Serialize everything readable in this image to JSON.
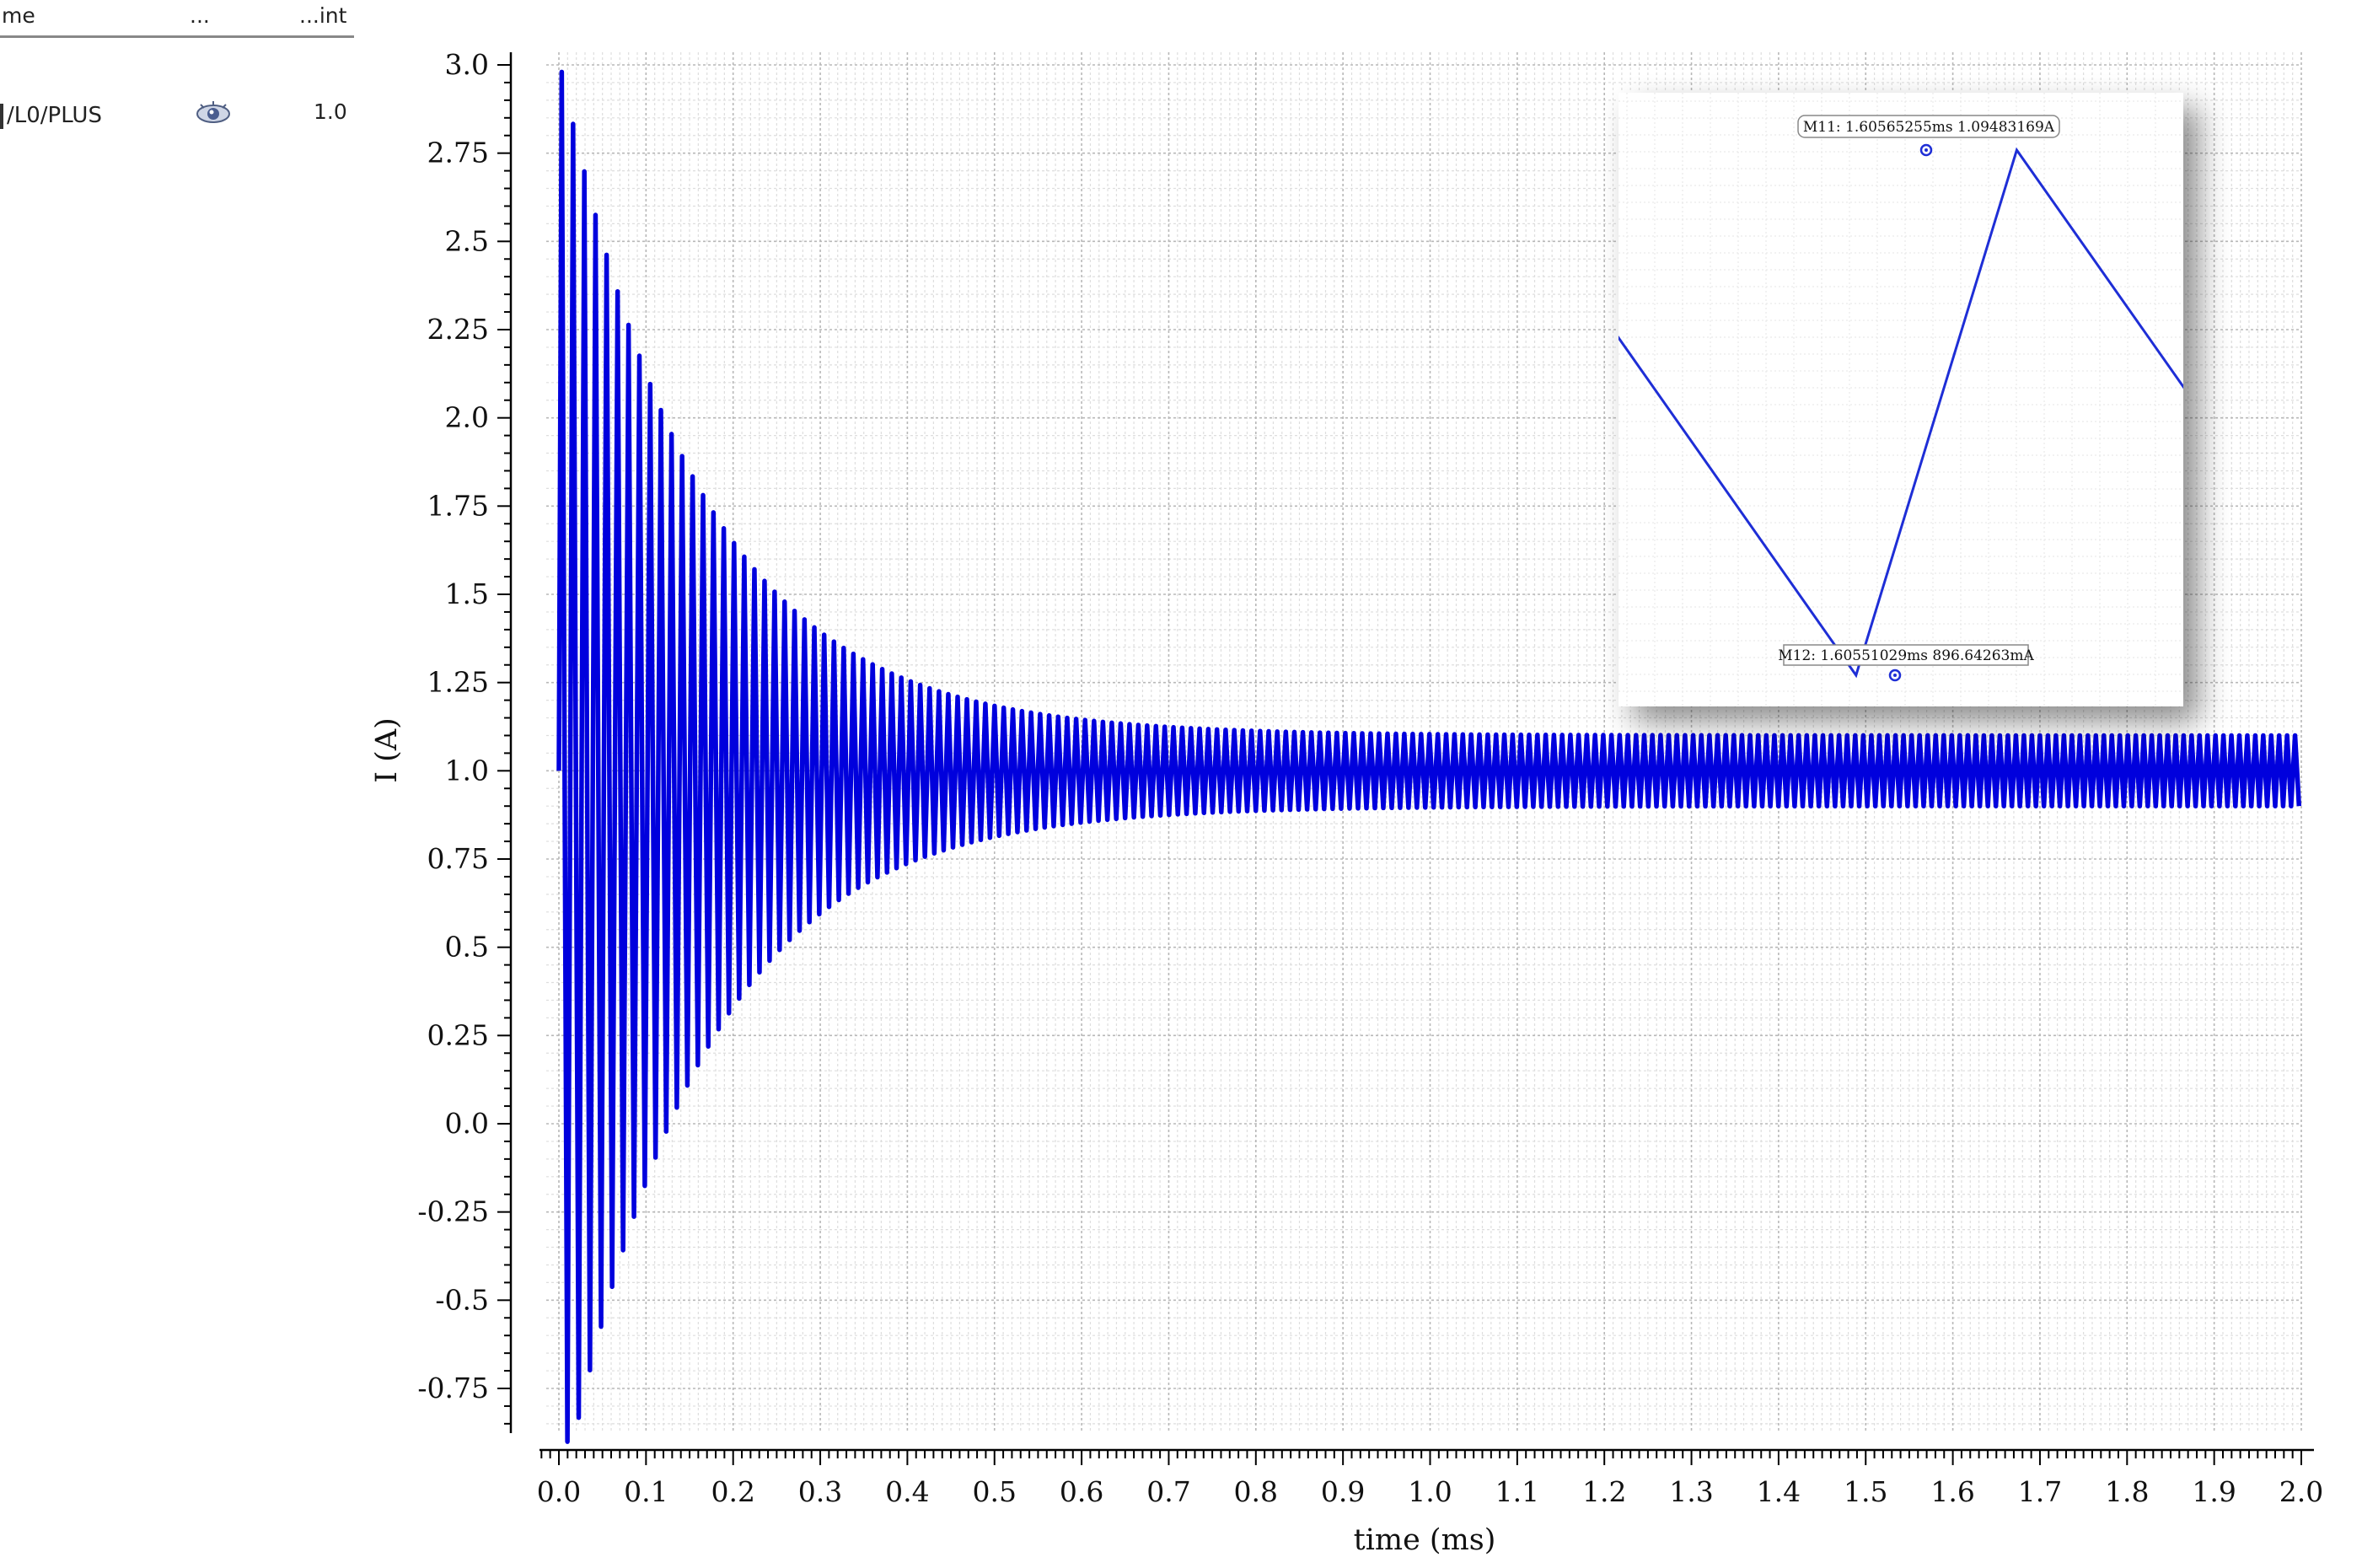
{
  "legend": {
    "columns": [
      "me",
      "...",
      "...int"
    ],
    "rows": [
      {
        "name": "/L0/PLUS",
        "visibility_icon": "eye-icon",
        "value": "1.0",
        "color": "#0000dd"
      }
    ]
  },
  "chart_data": {
    "type": "line",
    "title": "",
    "xlabel": "time (ms)",
    "ylabel": "I (A)",
    "xlim": [
      0.0,
      2.0
    ],
    "ylim": [
      -0.85,
      3.05
    ],
    "x_ticks": [
      "0.0",
      "0.1",
      "0.2",
      "0.3",
      "0.4",
      "0.5",
      "0.6",
      "0.7",
      "0.8",
      "0.9",
      "1.0",
      "1.1",
      "1.2",
      "1.3",
      "1.4",
      "1.5",
      "1.6",
      "1.7",
      "1.8",
      "1.9",
      "2.0"
    ],
    "y_ticks": [
      "3.0",
      "2.75",
      "2.5",
      "2.25",
      "2.0",
      "1.75",
      "1.5",
      "1.25",
      "1.0",
      "0.75",
      "0.5",
      "0.25",
      "0.0",
      "-0.25",
      "-0.5",
      "-0.75"
    ],
    "grid": true,
    "series": [
      {
        "name": "/L0/PLUS",
        "color": "#0000dd",
        "steady_state_mean": 1.0,
        "initial_peak": 2.98,
        "initial_trough": -0.84,
        "steady_state_band": [
          0.9,
          1.1
        ]
      }
    ],
    "inset": {
      "zoom_window_ms": [
        1.6053,
        1.6058
      ],
      "markers": [
        {
          "label": "M11: 1.60565255ms 1.09483169A",
          "x_ms": 1.60565255,
          "y": 1.09483169
        },
        {
          "label": "M12: 1.60551029ms 896.64263mA",
          "x_ms": 1.60551029,
          "y": 0.89664263
        }
      ]
    }
  }
}
